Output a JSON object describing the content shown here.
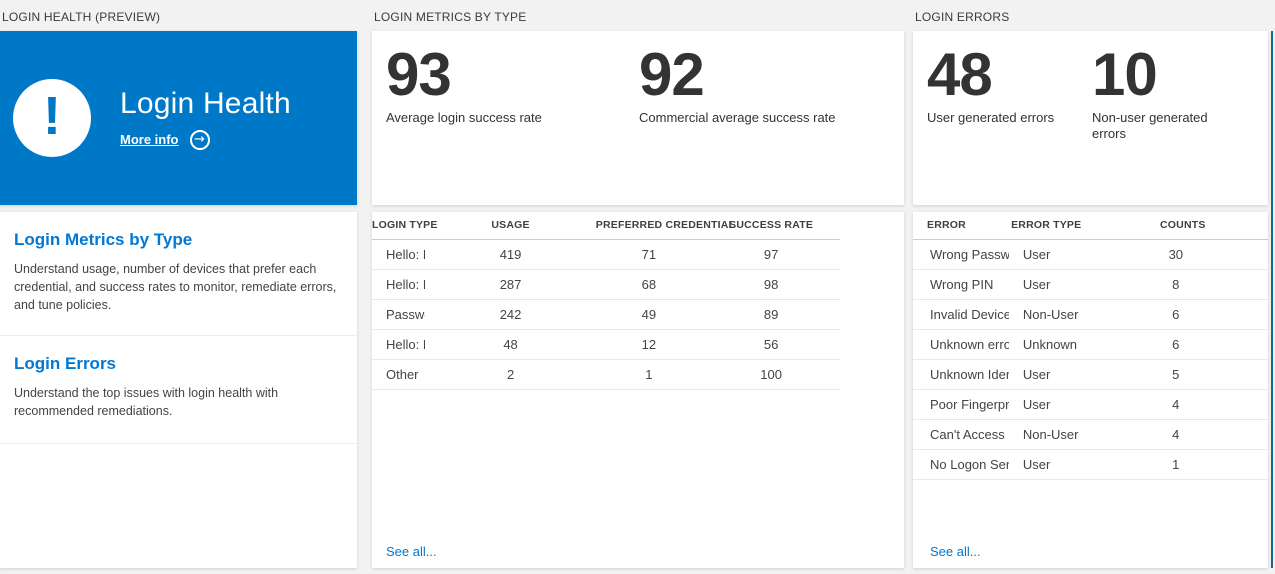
{
  "colors": {
    "tile_blue": "#0078c8",
    "accent_link_blue": "#0078d4",
    "page_background": "#f2f2f2",
    "edge_strip_blue": "#1b6595"
  },
  "panels": {
    "login_health": {
      "header": "LOGIN HEALTH (PREVIEW)",
      "tile": {
        "title": "Login Health",
        "more_info": "More info",
        "icon": "exclamation-circle-icon"
      },
      "sections": [
        {
          "title": "Login Metrics by Type",
          "description": "Understand usage, number of devices that prefer each credential, and success rates to monitor, remediate errors, and tune policies."
        },
        {
          "title": "Login Errors",
          "description": "Understand the top issues with login health with recommended remediations."
        }
      ]
    },
    "login_metrics": {
      "header": "LOGIN METRICS BY TYPE",
      "stats": [
        {
          "value": "93",
          "label": "Average login success rate"
        },
        {
          "value": "92",
          "label": "Commercial average success rate"
        }
      ],
      "table": {
        "columns": [
          "LOGIN TYPE",
          "USAGE",
          "PREFERRED CREDENTIAL",
          "SUCCESS RATE"
        ],
        "rows": [
          [
            "Hello: Face",
            "419",
            "71",
            "97"
          ],
          [
            "Hello: PIN",
            "287",
            "68",
            "98"
          ],
          [
            "Password",
            "242",
            "49",
            "89"
          ],
          [
            "Hello: Fingerprint",
            "48",
            "12",
            "56"
          ],
          [
            "Other",
            "2",
            "1",
            "100"
          ]
        ]
      },
      "see_all": "See all..."
    },
    "login_errors": {
      "header": "LOGIN ERRORS",
      "stats": [
        {
          "value": "48",
          "label": "User generated errors"
        },
        {
          "value": "10",
          "label": "Non-user generated errors"
        }
      ],
      "table": {
        "columns": [
          "ERROR",
          "ERROR TYPE",
          "COUNTS"
        ],
        "rows": [
          [
            "Wrong Password",
            "User",
            "30"
          ],
          [
            "Wrong PIN",
            "User",
            "8"
          ],
          [
            "Invalid Device State",
            "Non-User",
            "6"
          ],
          [
            "Unknown error",
            "Unknown",
            "6"
          ],
          [
            "Unknown Identity",
            "User",
            "5"
          ],
          [
            "Poor Fingerprint Quality",
            "User",
            "4"
          ],
          [
            "Can't Access Domain Info",
            "Non-User",
            "4"
          ],
          [
            "No Logon Servers",
            "User",
            "1"
          ]
        ]
      },
      "see_all": "See all..."
    }
  }
}
